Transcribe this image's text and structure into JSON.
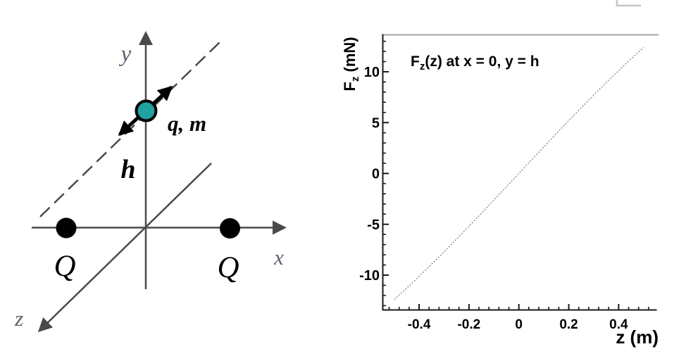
{
  "figure": {
    "background": "#ffffff",
    "description_visible_parts": "charge configuration diagram and force curve plot"
  },
  "diagram": {
    "labels": {
      "y_axis": "y",
      "x_axis": "x",
      "z_axis": "z",
      "height": "h",
      "test_charge": "q, m",
      "charge_left": "Q",
      "charge_right": "Q"
    },
    "colors": {
      "axis_gray": "#4a4a4a",
      "label_gray": "#5a626e",
      "label_black": "#000000",
      "test_charge_fill": "#21a0a0",
      "test_charge_stroke": "#000000",
      "fixed_charge_fill": "#000000",
      "motion_arrow": "#000000"
    }
  },
  "plot": {
    "ylabel_parts": {
      "main": "F",
      "sub": "z",
      "rest": " (mN)"
    },
    "annotation_parts": {
      "main": "F",
      "sub": "z",
      "rest": "(z) at x = 0, y = h"
    },
    "colors": {
      "axis": "#1a1a1a",
      "frame_top": "#999999",
      "curve": "#828282",
      "text": "#000000",
      "cropped_corner": "#c4c4c4"
    }
  },
  "chart_data": {
    "type": "line",
    "title": "F_z(z) at x = 0, y = h",
    "xlabel": "z (m)",
    "ylabel": "F_z (mN)",
    "xlim": [
      -0.55,
      0.55
    ],
    "ylim": [
      -13.4,
      13.6
    ],
    "x_ticks": [
      -0.4,
      -0.2,
      0,
      0.2,
      0.4
    ],
    "x_tick_labels": [
      "-0.4",
      "-0.2",
      "0",
      "0.2",
      "0.4"
    ],
    "y_ticks": [
      10,
      5,
      0,
      -5,
      -10
    ],
    "y_tick_labels": [
      "10",
      "5",
      "0",
      "-5",
      "-10"
    ],
    "x_minor_step": 0.04,
    "y_minor_step": 1,
    "grid": false,
    "legend": false,
    "line_style": "dotted",
    "series": [
      {
        "name": "F_z(z)",
        "x": [
          -0.5,
          -0.45,
          -0.4,
          -0.35,
          -0.3,
          -0.25,
          -0.2,
          -0.15,
          -0.1,
          -0.05,
          0,
          0.05,
          0.1,
          0.15,
          0.2,
          0.25,
          0.3,
          0.35,
          0.4,
          0.45,
          0.5
        ],
        "y": [
          -12.4,
          -11.28,
          -10.12,
          -8.93,
          -7.71,
          -6.46,
          -5.2,
          -3.91,
          -2.61,
          -1.31,
          0,
          1.31,
          2.61,
          3.91,
          5.2,
          6.46,
          7.71,
          8.93,
          10.12,
          11.28,
          12.4
        ]
      }
    ]
  }
}
